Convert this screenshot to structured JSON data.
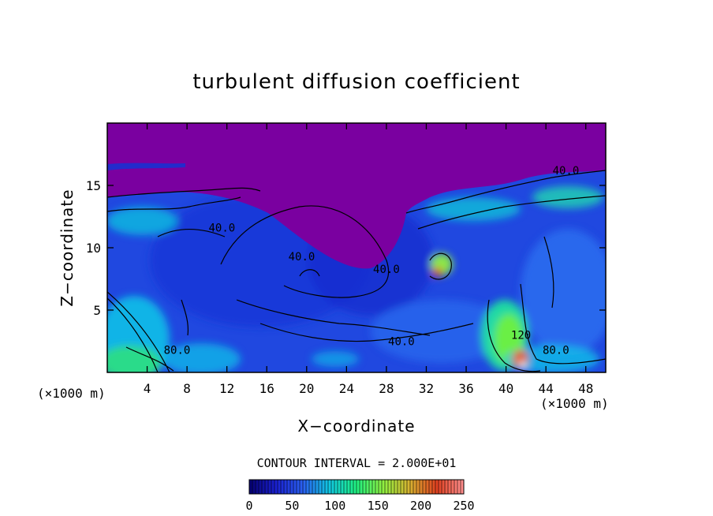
{
  "chart_data": {
    "type": "heatmap",
    "title": "turbulent diffusion coefficient",
    "xlabel": "X−coordinate",
    "ylabel": "Z−coordinate",
    "x_unit": "(×1000 m)",
    "x_unit_right": "(×1000 m)",
    "xlim": [
      0,
      50
    ],
    "ylim": [
      0,
      20
    ],
    "x_ticks": [
      4,
      8,
      12,
      16,
      20,
      24,
      28,
      32,
      36,
      40,
      44,
      48
    ],
    "y_ticks": [
      5,
      10,
      15
    ],
    "contour_interval_text": "CONTOUR INTERVAL = 2.000E+01",
    "contour_labels": [
      {
        "text": "40.0",
        "x": 11.5,
        "z": 11.6
      },
      {
        "text": "40.0",
        "x": 19.5,
        "z": 9.3
      },
      {
        "text": "40.0",
        "x": 29.5,
        "z": 2.5
      },
      {
        "text": "80.0",
        "x": 7.0,
        "z": 1.8
      },
      {
        "text": "80.0",
        "x": 45.0,
        "z": 1.8
      },
      {
        "text": "40.0",
        "x": 46.0,
        "z": 16.2
      },
      {
        "text": "120",
        "x": 41.5,
        "z": 3.0
      },
      {
        "text": "40.0",
        "x": 28.0,
        "z": 8.3
      }
    ],
    "colorbar": {
      "min": 0,
      "max": 250,
      "ticks": [
        0,
        50,
        100,
        150,
        200,
        250
      ],
      "colors": [
        "#050070",
        "#1a20d0",
        "#2a60f0",
        "#10c8e0",
        "#20f080",
        "#90f040",
        "#d8b030",
        "#e04020",
        "#ff9090"
      ]
    },
    "grid": false,
    "legend": "none"
  }
}
